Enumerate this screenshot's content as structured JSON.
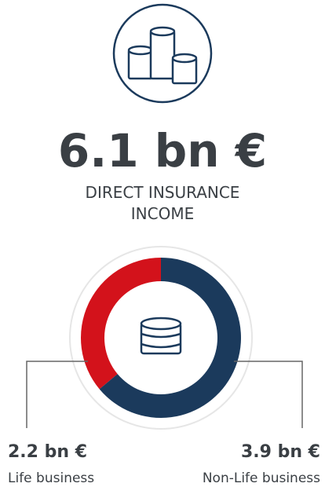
{
  "chart_data": {
    "type": "donut",
    "title": "6.1 bn €",
    "subtitle": "DIRECT INSURANCE INCOME",
    "categories": [
      "Life business",
      "Non-Life business"
    ],
    "values": [
      2.2,
      3.9
    ],
    "value_labels": [
      "2.2 bn €",
      "3.9 bn €"
    ],
    "colors": [
      "#d3121b",
      "#1b3a5c"
    ]
  }
}
